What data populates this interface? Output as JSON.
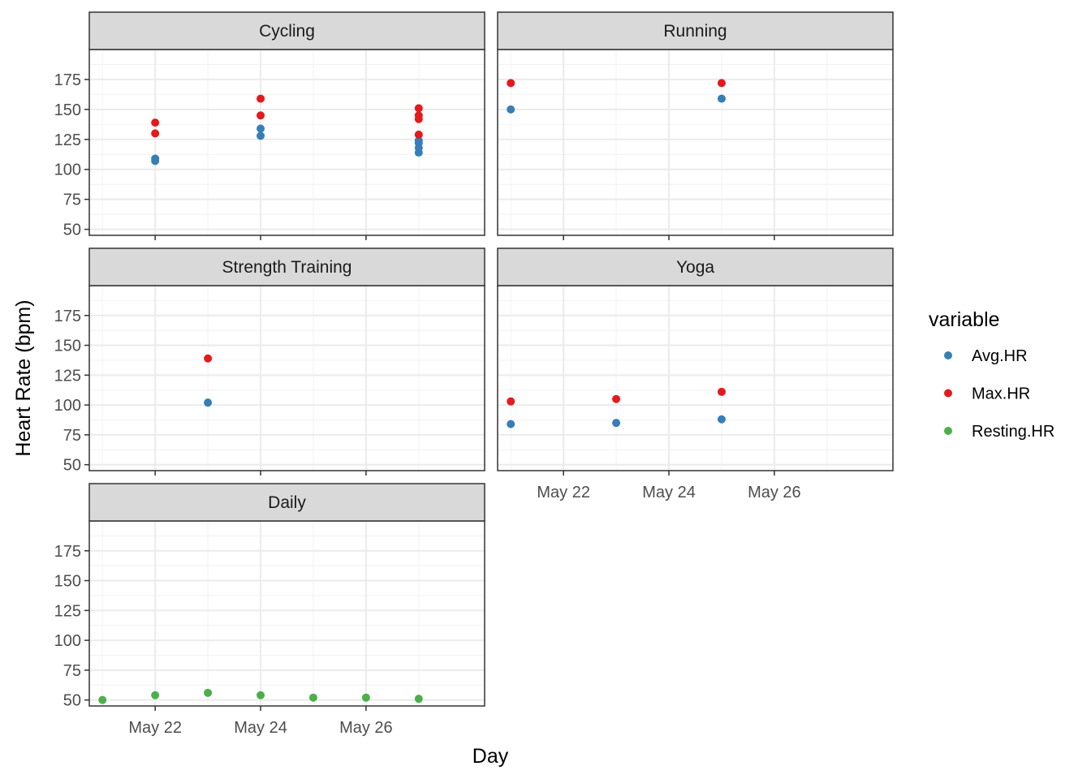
{
  "chart_data": {
    "type": "scatter",
    "facet_layout": "wrap",
    "xlabel": "Day",
    "ylabel": "Heart Rate (bpm)",
    "x_ticks": [
      "May 22",
      "May 24",
      "May 26"
    ],
    "x_tick_dates": [
      "2024-05-22",
      "2024-05-24",
      "2024-05-26"
    ],
    "xlim": [
      "2024-05-20 18:00",
      "2024-05-28 06:00"
    ],
    "y_ticks": [
      50,
      75,
      100,
      125,
      150,
      175
    ],
    "ylim": [
      45,
      200
    ],
    "grid": true,
    "legend": {
      "title": "variable",
      "position": "right",
      "entries": [
        {
          "name": "Avg.HR",
          "color": "#377EB8"
        },
        {
          "name": "Max.HR",
          "color": "#E41A1C"
        },
        {
          "name": "Resting.HR",
          "color": "#4DAF4A"
        }
      ]
    },
    "panels": [
      {
        "name": "Cycling",
        "points": [
          {
            "x": "2024-05-22",
            "y": 109,
            "series": "Avg.HR"
          },
          {
            "x": "2024-05-22",
            "y": 107,
            "series": "Avg.HR"
          },
          {
            "x": "2024-05-22",
            "y": 139,
            "series": "Max.HR"
          },
          {
            "x": "2024-05-22",
            "y": 130,
            "series": "Max.HR"
          },
          {
            "x": "2024-05-24",
            "y": 134,
            "series": "Avg.HR"
          },
          {
            "x": "2024-05-24",
            "y": 128,
            "series": "Avg.HR"
          },
          {
            "x": "2024-05-24",
            "y": 159,
            "series": "Max.HR"
          },
          {
            "x": "2024-05-24",
            "y": 145,
            "series": "Max.HR"
          },
          {
            "x": "2024-05-27",
            "y": 124,
            "series": "Avg.HR"
          },
          {
            "x": "2024-05-27",
            "y": 122,
            "series": "Avg.HR"
          },
          {
            "x": "2024-05-27",
            "y": 118,
            "series": "Avg.HR"
          },
          {
            "x": "2024-05-27",
            "y": 114,
            "series": "Avg.HR"
          },
          {
            "x": "2024-05-27",
            "y": 151,
            "series": "Max.HR"
          },
          {
            "x": "2024-05-27",
            "y": 145,
            "series": "Max.HR"
          },
          {
            "x": "2024-05-27",
            "y": 142,
            "series": "Max.HR"
          },
          {
            "x": "2024-05-27",
            "y": 129,
            "series": "Max.HR"
          }
        ]
      },
      {
        "name": "Running",
        "points": [
          {
            "x": "2024-05-21",
            "y": 150,
            "series": "Avg.HR"
          },
          {
            "x": "2024-05-21",
            "y": 172,
            "series": "Max.HR"
          },
          {
            "x": "2024-05-25",
            "y": 159,
            "series": "Avg.HR"
          },
          {
            "x": "2024-05-25",
            "y": 172,
            "series": "Max.HR"
          }
        ]
      },
      {
        "name": "Strength Training",
        "points": [
          {
            "x": "2024-05-23",
            "y": 102,
            "series": "Avg.HR"
          },
          {
            "x": "2024-05-23",
            "y": 139,
            "series": "Max.HR"
          }
        ]
      },
      {
        "name": "Yoga",
        "points": [
          {
            "x": "2024-05-21",
            "y": 84,
            "series": "Avg.HR"
          },
          {
            "x": "2024-05-21",
            "y": 103,
            "series": "Max.HR"
          },
          {
            "x": "2024-05-23",
            "y": 85,
            "series": "Avg.HR"
          },
          {
            "x": "2024-05-23",
            "y": 105,
            "series": "Max.HR"
          },
          {
            "x": "2024-05-25",
            "y": 88,
            "series": "Avg.HR"
          },
          {
            "x": "2024-05-25",
            "y": 111,
            "series": "Max.HR"
          }
        ]
      },
      {
        "name": "Daily",
        "points": [
          {
            "x": "2024-05-21",
            "y": 50,
            "series": "Resting.HR"
          },
          {
            "x": "2024-05-22",
            "y": 54,
            "series": "Resting.HR"
          },
          {
            "x": "2024-05-23",
            "y": 56,
            "series": "Resting.HR"
          },
          {
            "x": "2024-05-24",
            "y": 54,
            "series": "Resting.HR"
          },
          {
            "x": "2024-05-25",
            "y": 52,
            "series": "Resting.HR"
          },
          {
            "x": "2024-05-26",
            "y": 52,
            "series": "Resting.HR"
          },
          {
            "x": "2024-05-27",
            "y": 51,
            "series": "Resting.HR"
          }
        ]
      }
    ]
  }
}
